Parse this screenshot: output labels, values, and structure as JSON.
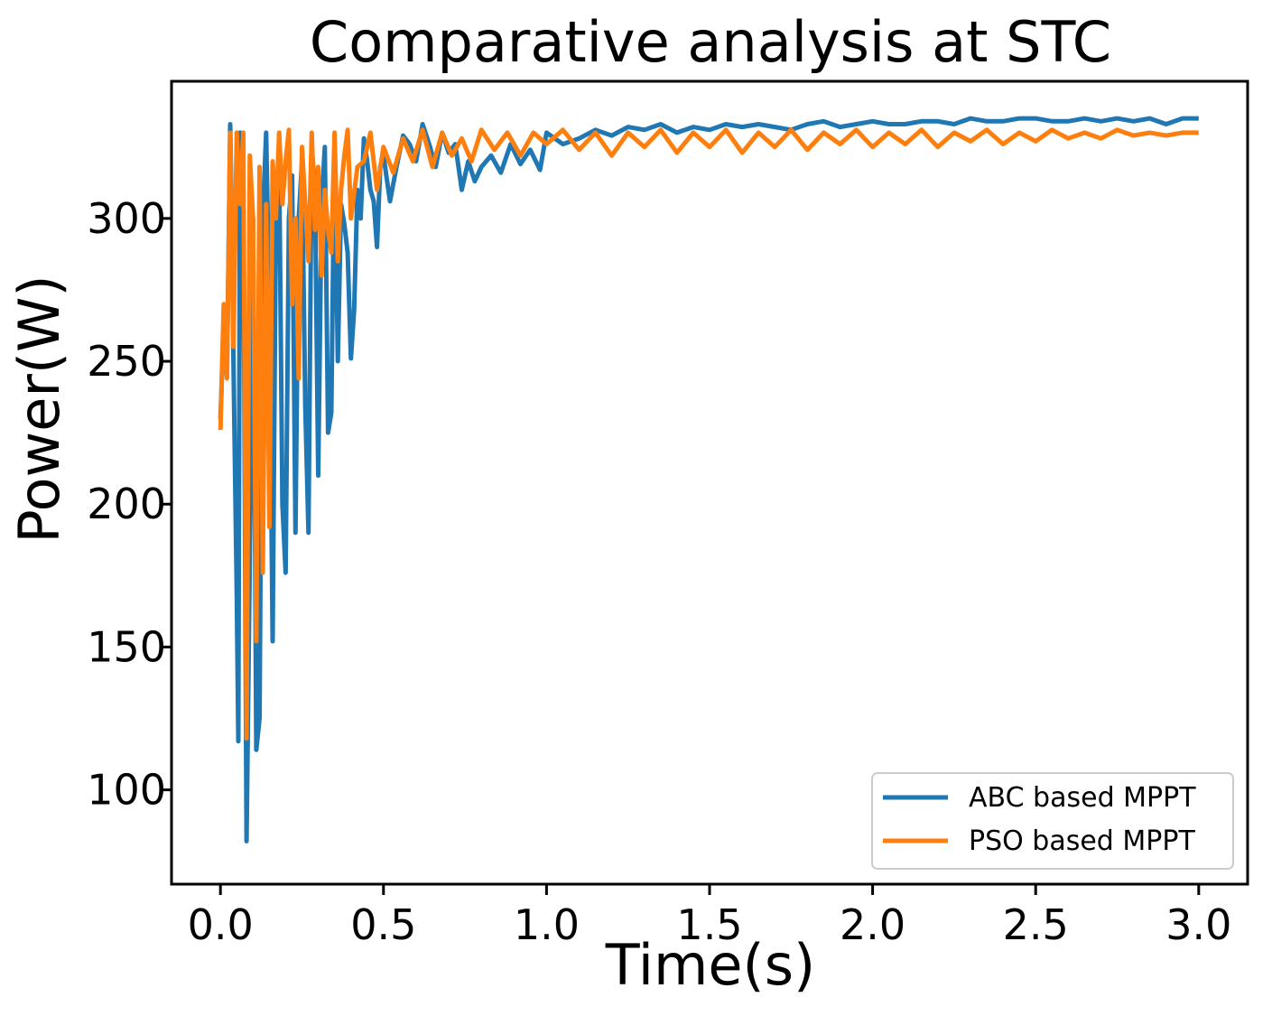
{
  "chart_data": {
    "type": "line",
    "title": "Comparative analysis at STC",
    "xlabel": "Time(s)",
    "ylabel": "Power(W)",
    "xlim": [
      -0.15,
      3.15
    ],
    "ylim": [
      67,
      348
    ],
    "x_ticks": [
      0.0,
      0.5,
      1.0,
      1.5,
      2.0,
      2.5,
      3.0
    ],
    "x_tick_labels": [
      "0.0",
      "0.5",
      "1.0",
      "1.5",
      "2.0",
      "2.5",
      "3.0"
    ],
    "y_ticks": [
      100,
      150,
      200,
      250,
      300
    ],
    "y_tick_labels": [
      "100",
      "150",
      "200",
      "250",
      "300"
    ],
    "legend_position": "bottom-right",
    "grid": false,
    "series": [
      {
        "name": "ABC based MPPT",
        "color": "#1f77b4",
        "x": [
          0.0,
          0.01,
          0.02,
          0.03,
          0.035,
          0.04,
          0.05,
          0.055,
          0.06,
          0.07,
          0.08,
          0.09,
          0.1,
          0.11,
          0.12,
          0.13,
          0.14,
          0.15,
          0.16,
          0.17,
          0.18,
          0.19,
          0.2,
          0.21,
          0.22,
          0.23,
          0.24,
          0.25,
          0.26,
          0.27,
          0.28,
          0.29,
          0.3,
          0.31,
          0.32,
          0.33,
          0.34,
          0.35,
          0.36,
          0.37,
          0.38,
          0.39,
          0.4,
          0.41,
          0.42,
          0.43,
          0.44,
          0.45,
          0.46,
          0.47,
          0.48,
          0.49,
          0.5,
          0.52,
          0.54,
          0.56,
          0.58,
          0.6,
          0.62,
          0.64,
          0.66,
          0.68,
          0.7,
          0.72,
          0.74,
          0.76,
          0.78,
          0.8,
          0.83,
          0.86,
          0.89,
          0.92,
          0.95,
          0.98,
          1.0,
          1.05,
          1.1,
          1.15,
          1.2,
          1.25,
          1.3,
          1.35,
          1.4,
          1.45,
          1.5,
          1.55,
          1.6,
          1.65,
          1.7,
          1.75,
          1.8,
          1.85,
          1.9,
          1.95,
          2.0,
          2.05,
          2.1,
          2.15,
          2.2,
          2.25,
          2.3,
          2.35,
          2.4,
          2.45,
          2.5,
          2.55,
          2.6,
          2.65,
          2.7,
          2.75,
          2.8,
          2.85,
          2.9,
          2.95,
          3.0
        ],
        "values": [
          230,
          262,
          245,
          333,
          300,
          250,
          170,
          117,
          330,
          310,
          82,
          180,
          300,
          114,
          125,
          300,
          330,
          270,
          152,
          300,
          320,
          200,
          176,
          300,
          315,
          190,
          300,
          320,
          235,
          190,
          325,
          310,
          210,
          305,
          325,
          225,
          232,
          328,
          250,
          305,
          298,
          288,
          251,
          268,
          310,
          300,
          328,
          320,
          310,
          306,
          290,
          318,
          322,
          306,
          318,
          329,
          326,
          320,
          333,
          326,
          318,
          330,
          323,
          326,
          310,
          320,
          313,
          318,
          322,
          316,
          326,
          319,
          324,
          317,
          330,
          326,
          328,
          331,
          329,
          332,
          331,
          333,
          330,
          332,
          331,
          333,
          332,
          333,
          332,
          331,
          333,
          334,
          332,
          333,
          334,
          333,
          333,
          334,
          334,
          333,
          335,
          334,
          334,
          335,
          335,
          334,
          334,
          335,
          334,
          335,
          334,
          335,
          333,
          335,
          335
        ]
      },
      {
        "name": "PSO based MPPT",
        "color": "#ff7f0e",
        "x": [
          0.0,
          0.01,
          0.02,
          0.03,
          0.04,
          0.05,
          0.06,
          0.07,
          0.08,
          0.09,
          0.1,
          0.11,
          0.12,
          0.13,
          0.14,
          0.15,
          0.16,
          0.17,
          0.18,
          0.19,
          0.2,
          0.21,
          0.22,
          0.23,
          0.24,
          0.25,
          0.26,
          0.27,
          0.28,
          0.29,
          0.3,
          0.31,
          0.32,
          0.33,
          0.34,
          0.35,
          0.36,
          0.37,
          0.38,
          0.39,
          0.4,
          0.42,
          0.44,
          0.46,
          0.48,
          0.5,
          0.53,
          0.56,
          0.59,
          0.62,
          0.65,
          0.68,
          0.71,
          0.74,
          0.77,
          0.8,
          0.84,
          0.88,
          0.92,
          0.96,
          1.0,
          1.05,
          1.1,
          1.15,
          1.2,
          1.25,
          1.3,
          1.35,
          1.4,
          1.45,
          1.5,
          1.55,
          1.6,
          1.65,
          1.7,
          1.75,
          1.8,
          1.85,
          1.9,
          1.95,
          2.0,
          2.05,
          2.1,
          2.15,
          2.2,
          2.25,
          2.3,
          2.35,
          2.4,
          2.45,
          2.5,
          2.55,
          2.6,
          2.65,
          2.7,
          2.75,
          2.8,
          2.85,
          2.9,
          2.95,
          3.0
        ],
        "values": [
          226,
          270,
          244,
          330,
          255,
          330,
          305,
          330,
          118,
          322,
          300,
          152,
          318,
          176,
          305,
          192,
          320,
          300,
          330,
          305,
          320,
          331,
          270,
          300,
          244,
          325,
          305,
          285,
          330,
          296,
          318,
          280,
          310,
          296,
          288,
          330,
          285,
          310,
          322,
          331,
          300,
          318,
          320,
          330,
          310,
          325,
          316,
          328,
          320,
          331,
          318,
          330,
          322,
          328,
          320,
          331,
          324,
          330,
          322,
          330,
          326,
          331,
          324,
          330,
          322,
          330,
          325,
          331,
          323,
          330,
          325,
          331,
          323,
          330,
          325,
          331,
          324,
          330,
          326,
          331,
          325,
          330,
          326,
          331,
          325,
          330,
          327,
          331,
          326,
          330,
          327,
          331,
          328,
          330,
          328,
          331,
          329,
          330,
          329,
          330,
          330
        ]
      }
    ]
  }
}
